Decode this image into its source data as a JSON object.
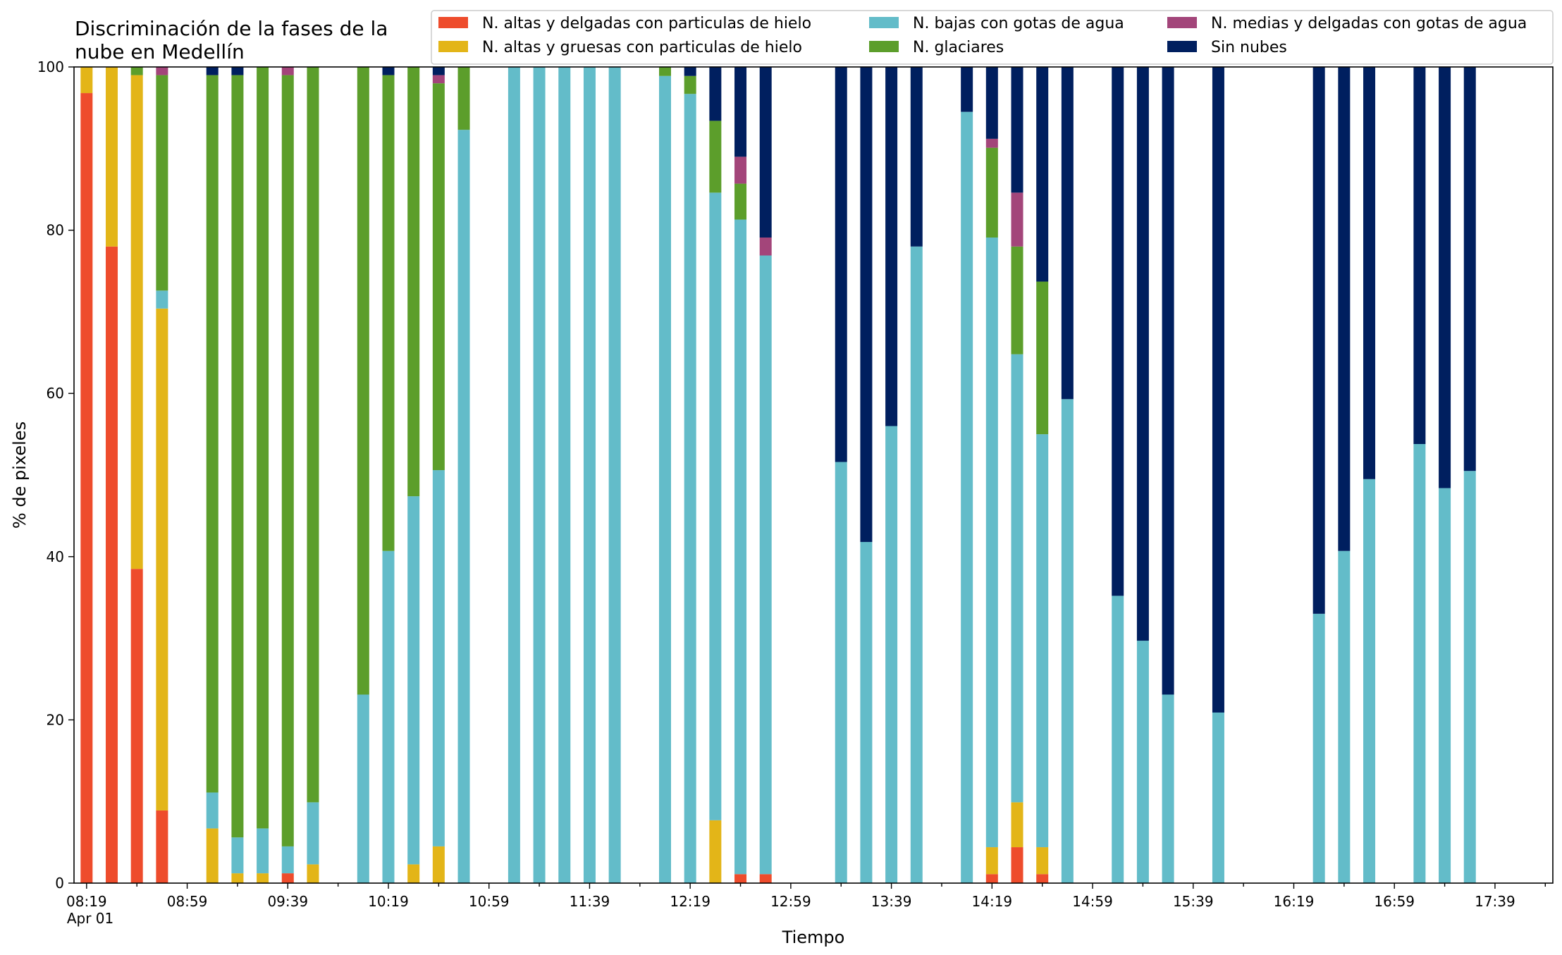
{
  "chart_data": {
    "type": "bar",
    "stacked": true,
    "title_lines": [
      "Discriminación de la fases de la",
      "nube en Medellín"
    ],
    "xlabel": "Tiempo",
    "ylabel": "% de pixeles",
    "ylim": [
      0,
      100
    ],
    "yticks": [
      0,
      20,
      40,
      60,
      80,
      100
    ],
    "xlim": [
      "08:14",
      "18:02"
    ],
    "xtick_labels": [
      "08:19",
      "08:59",
      "09:39",
      "10:19",
      "10:59",
      "11:39",
      "12:19",
      "12:59",
      "13:39",
      "14:19",
      "14:59",
      "15:39",
      "16:19",
      "16:59",
      "17:39"
    ],
    "xtick_sublabel": "Apr 01",
    "legend_position": "top-right",
    "legend_columns": 3,
    "series": [
      {
        "name": "N. altas y delgadas con particulas de hielo",
        "color": "#ee4c2c"
      },
      {
        "name": "N. altas y gruesas con particulas de hielo",
        "color": "#e3b518"
      },
      {
        "name": "N. bajas con gotas de agua",
        "color": "#63bcc9"
      },
      {
        "name": "N. glaciares",
        "color": "#5c9e2b"
      },
      {
        "name": "N. medias y delgadas con gotas de agua",
        "color": "#a3457a"
      },
      {
        "name": "Sin nubes",
        "color": "#001f5f"
      }
    ],
    "bars": [
      {
        "time": "08:19",
        "values": [
          96.8,
          3.2,
          0,
          0,
          0,
          0
        ]
      },
      {
        "time": "08:29",
        "values": [
          78.0,
          22.0,
          0,
          0,
          0,
          0
        ]
      },
      {
        "time": "08:39",
        "values": [
          38.5,
          60.5,
          0,
          1.0,
          0,
          0
        ]
      },
      {
        "time": "08:49",
        "values": [
          8.9,
          61.5,
          2.2,
          26.4,
          1.0,
          0
        ]
      },
      {
        "time": "09:09",
        "values": [
          0,
          6.7,
          4.4,
          87.9,
          0,
          1.0
        ]
      },
      {
        "time": "09:19",
        "values": [
          0,
          1.2,
          4.4,
          93.4,
          0,
          1.0
        ]
      },
      {
        "time": "09:29",
        "values": [
          0,
          1.2,
          5.5,
          93.3,
          0,
          0
        ]
      },
      {
        "time": "09:39",
        "values": [
          1.2,
          0,
          3.3,
          94.5,
          1.0,
          0
        ]
      },
      {
        "time": "09:49",
        "values": [
          0,
          2.3,
          7.6,
          90.1,
          0,
          0
        ]
      },
      {
        "time": "10:09",
        "values": [
          0,
          0,
          23.1,
          76.9,
          0,
          0
        ]
      },
      {
        "time": "10:19",
        "values": [
          0,
          0,
          40.7,
          58.3,
          0,
          1.0
        ]
      },
      {
        "time": "10:29",
        "values": [
          0,
          2.3,
          45.1,
          52.6,
          0,
          0
        ]
      },
      {
        "time": "10:39",
        "values": [
          0,
          4.5,
          46.1,
          47.4,
          1.0,
          1.0
        ]
      },
      {
        "time": "10:49",
        "values": [
          0,
          0,
          92.3,
          7.7,
          0,
          0
        ]
      },
      {
        "time": "11:09",
        "values": [
          0,
          0,
          100,
          0,
          0,
          0
        ]
      },
      {
        "time": "11:19",
        "values": [
          0,
          0,
          100,
          0,
          0,
          0
        ]
      },
      {
        "time": "11:29",
        "values": [
          0,
          0,
          100,
          0,
          0,
          0
        ]
      },
      {
        "time": "11:39",
        "values": [
          0,
          0,
          100,
          0,
          0,
          0
        ]
      },
      {
        "time": "11:49",
        "values": [
          0,
          0,
          100,
          0,
          0,
          0
        ]
      },
      {
        "time": "12:09",
        "values": [
          0,
          0,
          98.9,
          1.1,
          0,
          0
        ]
      },
      {
        "time": "12:19",
        "values": [
          0,
          0,
          96.7,
          2.2,
          0,
          1.1
        ]
      },
      {
        "time": "12:29",
        "values": [
          0,
          7.7,
          76.9,
          8.8,
          0,
          6.6
        ]
      },
      {
        "time": "12:39",
        "values": [
          1.1,
          0,
          80.2,
          4.4,
          3.3,
          11.0
        ]
      },
      {
        "time": "12:49",
        "values": [
          1.1,
          0,
          75.8,
          0,
          2.2,
          20.9
        ]
      },
      {
        "time": "13:19",
        "values": [
          0,
          0,
          51.6,
          0,
          0,
          48.4
        ]
      },
      {
        "time": "13:29",
        "values": [
          0,
          0,
          41.8,
          0,
          0,
          58.2
        ]
      },
      {
        "time": "13:39",
        "values": [
          0,
          0,
          56.0,
          0,
          0,
          44.0
        ]
      },
      {
        "time": "13:49",
        "values": [
          0,
          0,
          78.0,
          0,
          0,
          22.0
        ]
      },
      {
        "time": "14:09",
        "values": [
          0,
          0,
          94.5,
          0,
          0,
          5.5
        ]
      },
      {
        "time": "14:19",
        "values": [
          1.1,
          3.3,
          74.7,
          11.0,
          1.1,
          8.8
        ]
      },
      {
        "time": "14:29",
        "values": [
          4.4,
          5.5,
          54.9,
          13.2,
          6.6,
          15.4
        ]
      },
      {
        "time": "14:39",
        "values": [
          1.1,
          3.3,
          50.6,
          18.7,
          0,
          26.3
        ]
      },
      {
        "time": "14:49",
        "values": [
          0,
          0,
          59.3,
          0,
          0,
          40.7
        ]
      },
      {
        "time": "15:09",
        "values": [
          0,
          0,
          35.2,
          0,
          0,
          64.8
        ]
      },
      {
        "time": "15:19",
        "values": [
          0,
          0,
          29.7,
          0,
          0,
          70.3
        ]
      },
      {
        "time": "15:29",
        "values": [
          0,
          0,
          23.1,
          0,
          0,
          76.9
        ]
      },
      {
        "time": "15:49",
        "values": [
          0,
          0,
          20.9,
          0,
          0,
          79.1
        ]
      },
      {
        "time": "16:29",
        "values": [
          0,
          0,
          33.0,
          0,
          0,
          67.0
        ]
      },
      {
        "time": "16:39",
        "values": [
          0,
          0,
          40.7,
          0,
          0,
          59.3
        ]
      },
      {
        "time": "16:49",
        "values": [
          0,
          0,
          49.5,
          0,
          0,
          50.5
        ]
      },
      {
        "time": "17:09",
        "values": [
          0,
          0,
          53.8,
          0,
          0,
          46.2
        ]
      },
      {
        "time": "17:19",
        "values": [
          0,
          0,
          48.4,
          0,
          0,
          51.6
        ]
      },
      {
        "time": "17:29",
        "values": [
          0,
          0,
          50.5,
          0,
          0,
          49.5
        ]
      }
    ]
  }
}
